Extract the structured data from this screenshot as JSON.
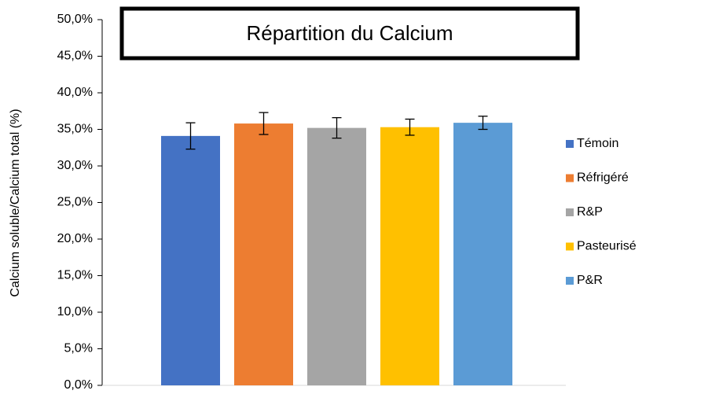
{
  "chart_data": {
    "type": "bar",
    "title": "Répartition du Calcium",
    "y_label": "Calcium soluble/Calcium total (%)",
    "series": [
      {
        "name": "Témoin",
        "color": "#4472c4",
        "values": [
          34.1
        ],
        "errors": [
          1.8
        ]
      },
      {
        "name": "Réfrigéré",
        "color": "#ed7d31",
        "values": [
          35.8
        ],
        "errors": [
          1.5
        ]
      },
      {
        "name": "R&P",
        "color": "#a5a5a5",
        "values": [
          35.2
        ],
        "errors": [
          1.4
        ]
      },
      {
        "name": "Pasteurisé",
        "color": "#ffc000",
        "values": [
          35.3
        ],
        "errors": [
          1.1
        ]
      },
      {
        "name": "P&R",
        "color": "#5b9bd5",
        "values": [
          35.9
        ],
        "errors": [
          0.9
        ]
      }
    ],
    "ylim": [
      0,
      50
    ],
    "yticks": [
      {
        "value": 0,
        "label": "0,0%"
      },
      {
        "value": 5,
        "label": "5,0%"
      },
      {
        "value": 10,
        "label": "10,0%"
      },
      {
        "value": 15,
        "label": "15,0%"
      },
      {
        "value": 20,
        "label": "20,0%"
      },
      {
        "value": 25,
        "label": "25,0%"
      },
      {
        "value": 30,
        "label": "30,0%"
      },
      {
        "value": 35,
        "label": "35,0%"
      },
      {
        "value": 40,
        "label": "40,0%"
      },
      {
        "value": 45,
        "label": "45,0%"
      },
      {
        "value": 50,
        "label": "50,0%"
      }
    ],
    "legend": "right"
  }
}
